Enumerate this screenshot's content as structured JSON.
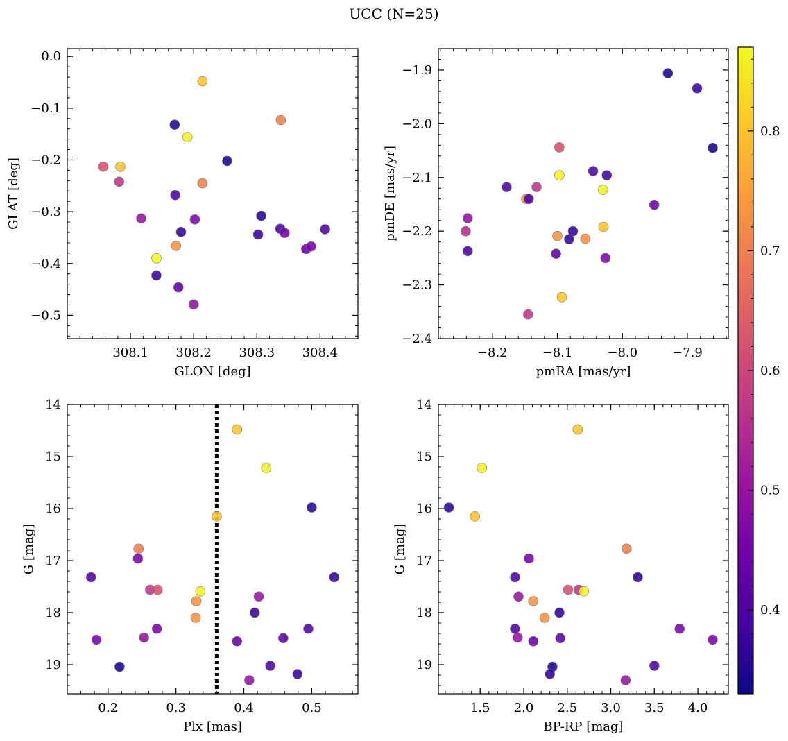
{
  "figure": {
    "title": "UCC (N=25)"
  },
  "colorbar": {
    "min": 0.33,
    "max": 0.87,
    "ticks": [
      0.4,
      0.5,
      0.6,
      0.7,
      0.8
    ],
    "tick_labels": [
      "0.4",
      "0.5",
      "0.6",
      "0.7",
      "0.8"
    ],
    "colormap": "plasma",
    "colors": [
      "#0d0887",
      "#46039f",
      "#7201a8",
      "#9c179e",
      "#bd3786",
      "#d8576b",
      "#ed7953",
      "#fb9f3a",
      "#fdca26",
      "#f0f921"
    ]
  },
  "chart_data": [
    {
      "type": "scatter",
      "xlabel": "GLON [deg]",
      "ylabel": "GLAT [deg]",
      "xlim": [
        308.0,
        308.46
      ],
      "ylim": [
        -0.545,
        0.015
      ],
      "xticks": [
        308.1,
        308.2,
        308.3,
        308.4
      ],
      "xtick_labels": [
        "308.1",
        "308.2",
        "308.3",
        "308.4"
      ],
      "yticks": [
        0.0,
        -0.1,
        -0.2,
        -0.3,
        -0.4,
        -0.5
      ],
      "ytick_labels": [
        "0.0",
        "−0.1",
        "−0.2",
        "−0.3",
        "−0.4",
        "−0.5"
      ],
      "points": [
        {
          "x": 308.214,
          "y": -0.048,
          "c": 0.8
        },
        {
          "x": 308.17,
          "y": -0.132,
          "c": 0.36
        },
        {
          "x": 308.19,
          "y": -0.156,
          "c": 0.86
        },
        {
          "x": 308.338,
          "y": -0.123,
          "c": 0.7
        },
        {
          "x": 308.057,
          "y": -0.213,
          "c": 0.62
        },
        {
          "x": 308.084,
          "y": -0.213,
          "c": 0.8
        },
        {
          "x": 308.082,
          "y": -0.242,
          "c": 0.57
        },
        {
          "x": 308.253,
          "y": -0.202,
          "c": 0.34
        },
        {
          "x": 308.214,
          "y": -0.245,
          "c": 0.7
        },
        {
          "x": 308.171,
          "y": -0.268,
          "c": 0.4
        },
        {
          "x": 308.117,
          "y": -0.313,
          "c": 0.5
        },
        {
          "x": 308.202,
          "y": -0.315,
          "c": 0.46
        },
        {
          "x": 308.18,
          "y": -0.339,
          "c": 0.37
        },
        {
          "x": 308.302,
          "y": -0.344,
          "c": 0.37
        },
        {
          "x": 308.307,
          "y": -0.308,
          "c": 0.36
        },
        {
          "x": 308.337,
          "y": -0.333,
          "c": 0.4
        },
        {
          "x": 308.344,
          "y": -0.341,
          "c": 0.44
        },
        {
          "x": 308.408,
          "y": -0.334,
          "c": 0.4
        },
        {
          "x": 308.172,
          "y": -0.366,
          "c": 0.73
        },
        {
          "x": 308.141,
          "y": -0.39,
          "c": 0.87
        },
        {
          "x": 308.378,
          "y": -0.372,
          "c": 0.44
        },
        {
          "x": 308.386,
          "y": -0.367,
          "c": 0.46
        },
        {
          "x": 308.141,
          "y": -0.423,
          "c": 0.38
        },
        {
          "x": 308.176,
          "y": -0.446,
          "c": 0.42
        },
        {
          "x": 308.2,
          "y": -0.479,
          "c": 0.5
        }
      ]
    },
    {
      "type": "scatter",
      "xlabel": "pmRA [mas/yr]",
      "ylabel": "pmDE [mas/yr]",
      "xlim": [
        -8.283,
        -7.837
      ],
      "ylim": [
        -2.4,
        -1.86
      ],
      "xticks": [
        -8.2,
        -8.1,
        -8.0,
        -7.9
      ],
      "xtick_labels": [
        "−8.2",
        "−8.1",
        "−8.0",
        "−7.9"
      ],
      "yticks": [
        -1.9,
        -2.0,
        -2.1,
        -2.2,
        -2.3,
        -2.4
      ],
      "ytick_labels": [
        "−1.9",
        "−2.0",
        "−2.1",
        "−2.2",
        "−2.3",
        "−2.4"
      ],
      "points": [
        {
          "x": -7.93,
          "y": -1.906,
          "c": 0.34
        },
        {
          "x": -7.885,
          "y": -1.934,
          "c": 0.37
        },
        {
          "x": -7.861,
          "y": -2.045,
          "c": 0.34
        },
        {
          "x": -8.097,
          "y": -2.044,
          "c": 0.62
        },
        {
          "x": -8.097,
          "y": -2.096,
          "c": 0.86
        },
        {
          "x": -8.045,
          "y": -2.088,
          "c": 0.4
        },
        {
          "x": -8.024,
          "y": -2.096,
          "c": 0.38
        },
        {
          "x": -8.178,
          "y": -2.118,
          "c": 0.4
        },
        {
          "x": -8.132,
          "y": -2.118,
          "c": 0.57
        },
        {
          "x": -8.03,
          "y": -2.123,
          "c": 0.86
        },
        {
          "x": -8.148,
          "y": -2.14,
          "c": 0.73
        },
        {
          "x": -8.144,
          "y": -2.14,
          "c": 0.4
        },
        {
          "x": -7.951,
          "y": -2.151,
          "c": 0.44
        },
        {
          "x": -8.238,
          "y": -2.176,
          "c": 0.5
        },
        {
          "x": -8.241,
          "y": -2.2,
          "c": 0.55
        },
        {
          "x": -8.238,
          "y": -2.237,
          "c": 0.4
        },
        {
          "x": -8.076,
          "y": -2.2,
          "c": 0.37
        },
        {
          "x": -8.029,
          "y": -2.192,
          "c": 0.8
        },
        {
          "x": -8.1,
          "y": -2.209,
          "c": 0.73
        },
        {
          "x": -8.082,
          "y": -2.215,
          "c": 0.37
        },
        {
          "x": -8.057,
          "y": -2.214,
          "c": 0.73
        },
        {
          "x": -8.102,
          "y": -2.242,
          "c": 0.42
        },
        {
          "x": -8.026,
          "y": -2.25,
          "c": 0.46
        },
        {
          "x": -8.093,
          "y": -2.323,
          "c": 0.8
        },
        {
          "x": -8.145,
          "y": -2.355,
          "c": 0.57
        }
      ]
    },
    {
      "type": "scatter",
      "xlabel": "Plx [mas]",
      "ylabel": "G [mag]",
      "xlim": [
        0.14,
        0.568
      ],
      "ylim": [
        19.56,
        14.0
      ],
      "xticks": [
        0.2,
        0.3,
        0.4,
        0.5
      ],
      "xtick_labels": [
        "0.2",
        "0.3",
        "0.4",
        "0.5"
      ],
      "yticks": [
        14,
        15,
        16,
        17,
        18,
        19
      ],
      "ytick_labels": [
        "14",
        "15",
        "16",
        "17",
        "18",
        "19"
      ],
      "vline": 0.36,
      "points": [
        {
          "x": 0.39,
          "y": 14.48,
          "c": 0.8
        },
        {
          "x": 0.433,
          "y": 15.22,
          "c": 0.86
        },
        {
          "x": 0.5,
          "y": 15.98,
          "c": 0.36
        },
        {
          "x": 0.36,
          "y": 16.15,
          "c": 0.8
        },
        {
          "x": 0.245,
          "y": 16.77,
          "c": 0.7
        },
        {
          "x": 0.244,
          "y": 16.96,
          "c": 0.46
        },
        {
          "x": 0.175,
          "y": 17.32,
          "c": 0.4
        },
        {
          "x": 0.533,
          "y": 17.32,
          "c": 0.37
        },
        {
          "x": 0.262,
          "y": 17.56,
          "c": 0.57
        },
        {
          "x": 0.273,
          "y": 17.56,
          "c": 0.62
        },
        {
          "x": 0.336,
          "y": 17.59,
          "c": 0.86
        },
        {
          "x": 0.422,
          "y": 17.69,
          "c": 0.5
        },
        {
          "x": 0.33,
          "y": 17.78,
          "c": 0.73
        },
        {
          "x": 0.416,
          "y": 18.0,
          "c": 0.37
        },
        {
          "x": 0.329,
          "y": 18.1,
          "c": 0.73
        },
        {
          "x": 0.272,
          "y": 18.31,
          "c": 0.46
        },
        {
          "x": 0.495,
          "y": 18.31,
          "c": 0.4
        },
        {
          "x": 0.253,
          "y": 18.48,
          "c": 0.5
        },
        {
          "x": 0.458,
          "y": 18.49,
          "c": 0.42
        },
        {
          "x": 0.183,
          "y": 18.52,
          "c": 0.46
        },
        {
          "x": 0.39,
          "y": 18.55,
          "c": 0.44
        },
        {
          "x": 0.217,
          "y": 19.04,
          "c": 0.34
        },
        {
          "x": 0.439,
          "y": 19.02,
          "c": 0.4
        },
        {
          "x": 0.479,
          "y": 19.18,
          "c": 0.37
        },
        {
          "x": 0.408,
          "y": 19.3,
          "c": 0.5
        }
      ]
    },
    {
      "type": "scatter",
      "xlabel": "BP-RP [mag]",
      "ylabel": "G [mag]",
      "xlim": [
        1.02,
        4.35
      ],
      "ylim": [
        19.56,
        14.0
      ],
      "xticks": [
        1.5,
        2.0,
        2.5,
        3.0,
        3.5,
        4.0
      ],
      "xtick_labels": [
        "1.5",
        "2.0",
        "2.5",
        "3.0",
        "3.5",
        "4.0"
      ],
      "yticks": [
        14,
        15,
        16,
        17,
        18,
        19
      ],
      "ytick_labels": [
        "14",
        "15",
        "16",
        "17",
        "18",
        "19"
      ],
      "points": [
        {
          "x": 2.62,
          "y": 14.48,
          "c": 0.8
        },
        {
          "x": 1.52,
          "y": 15.22,
          "c": 0.86
        },
        {
          "x": 1.14,
          "y": 15.98,
          "c": 0.36
        },
        {
          "x": 1.44,
          "y": 16.15,
          "c": 0.8
        },
        {
          "x": 3.18,
          "y": 16.77,
          "c": 0.7
        },
        {
          "x": 2.06,
          "y": 16.96,
          "c": 0.46
        },
        {
          "x": 1.9,
          "y": 17.32,
          "c": 0.4
        },
        {
          "x": 3.31,
          "y": 17.32,
          "c": 0.37
        },
        {
          "x": 2.51,
          "y": 17.56,
          "c": 0.62
        },
        {
          "x": 2.63,
          "y": 17.56,
          "c": 0.57
        },
        {
          "x": 2.69,
          "y": 17.59,
          "c": 0.86
        },
        {
          "x": 1.94,
          "y": 17.69,
          "c": 0.5
        },
        {
          "x": 2.11,
          "y": 17.78,
          "c": 0.73
        },
        {
          "x": 2.41,
          "y": 18.0,
          "c": 0.37
        },
        {
          "x": 2.24,
          "y": 18.1,
          "c": 0.73
        },
        {
          "x": 1.9,
          "y": 18.31,
          "c": 0.4
        },
        {
          "x": 3.79,
          "y": 18.31,
          "c": 0.46
        },
        {
          "x": 1.93,
          "y": 18.48,
          "c": 0.5
        },
        {
          "x": 2.42,
          "y": 18.49,
          "c": 0.42
        },
        {
          "x": 4.17,
          "y": 18.52,
          "c": 0.46
        },
        {
          "x": 2.11,
          "y": 18.55,
          "c": 0.44
        },
        {
          "x": 2.33,
          "y": 19.04,
          "c": 0.34
        },
        {
          "x": 3.5,
          "y": 19.02,
          "c": 0.4
        },
        {
          "x": 2.3,
          "y": 19.18,
          "c": 0.37
        },
        {
          "x": 3.17,
          "y": 19.3,
          "c": 0.5
        }
      ]
    }
  ]
}
